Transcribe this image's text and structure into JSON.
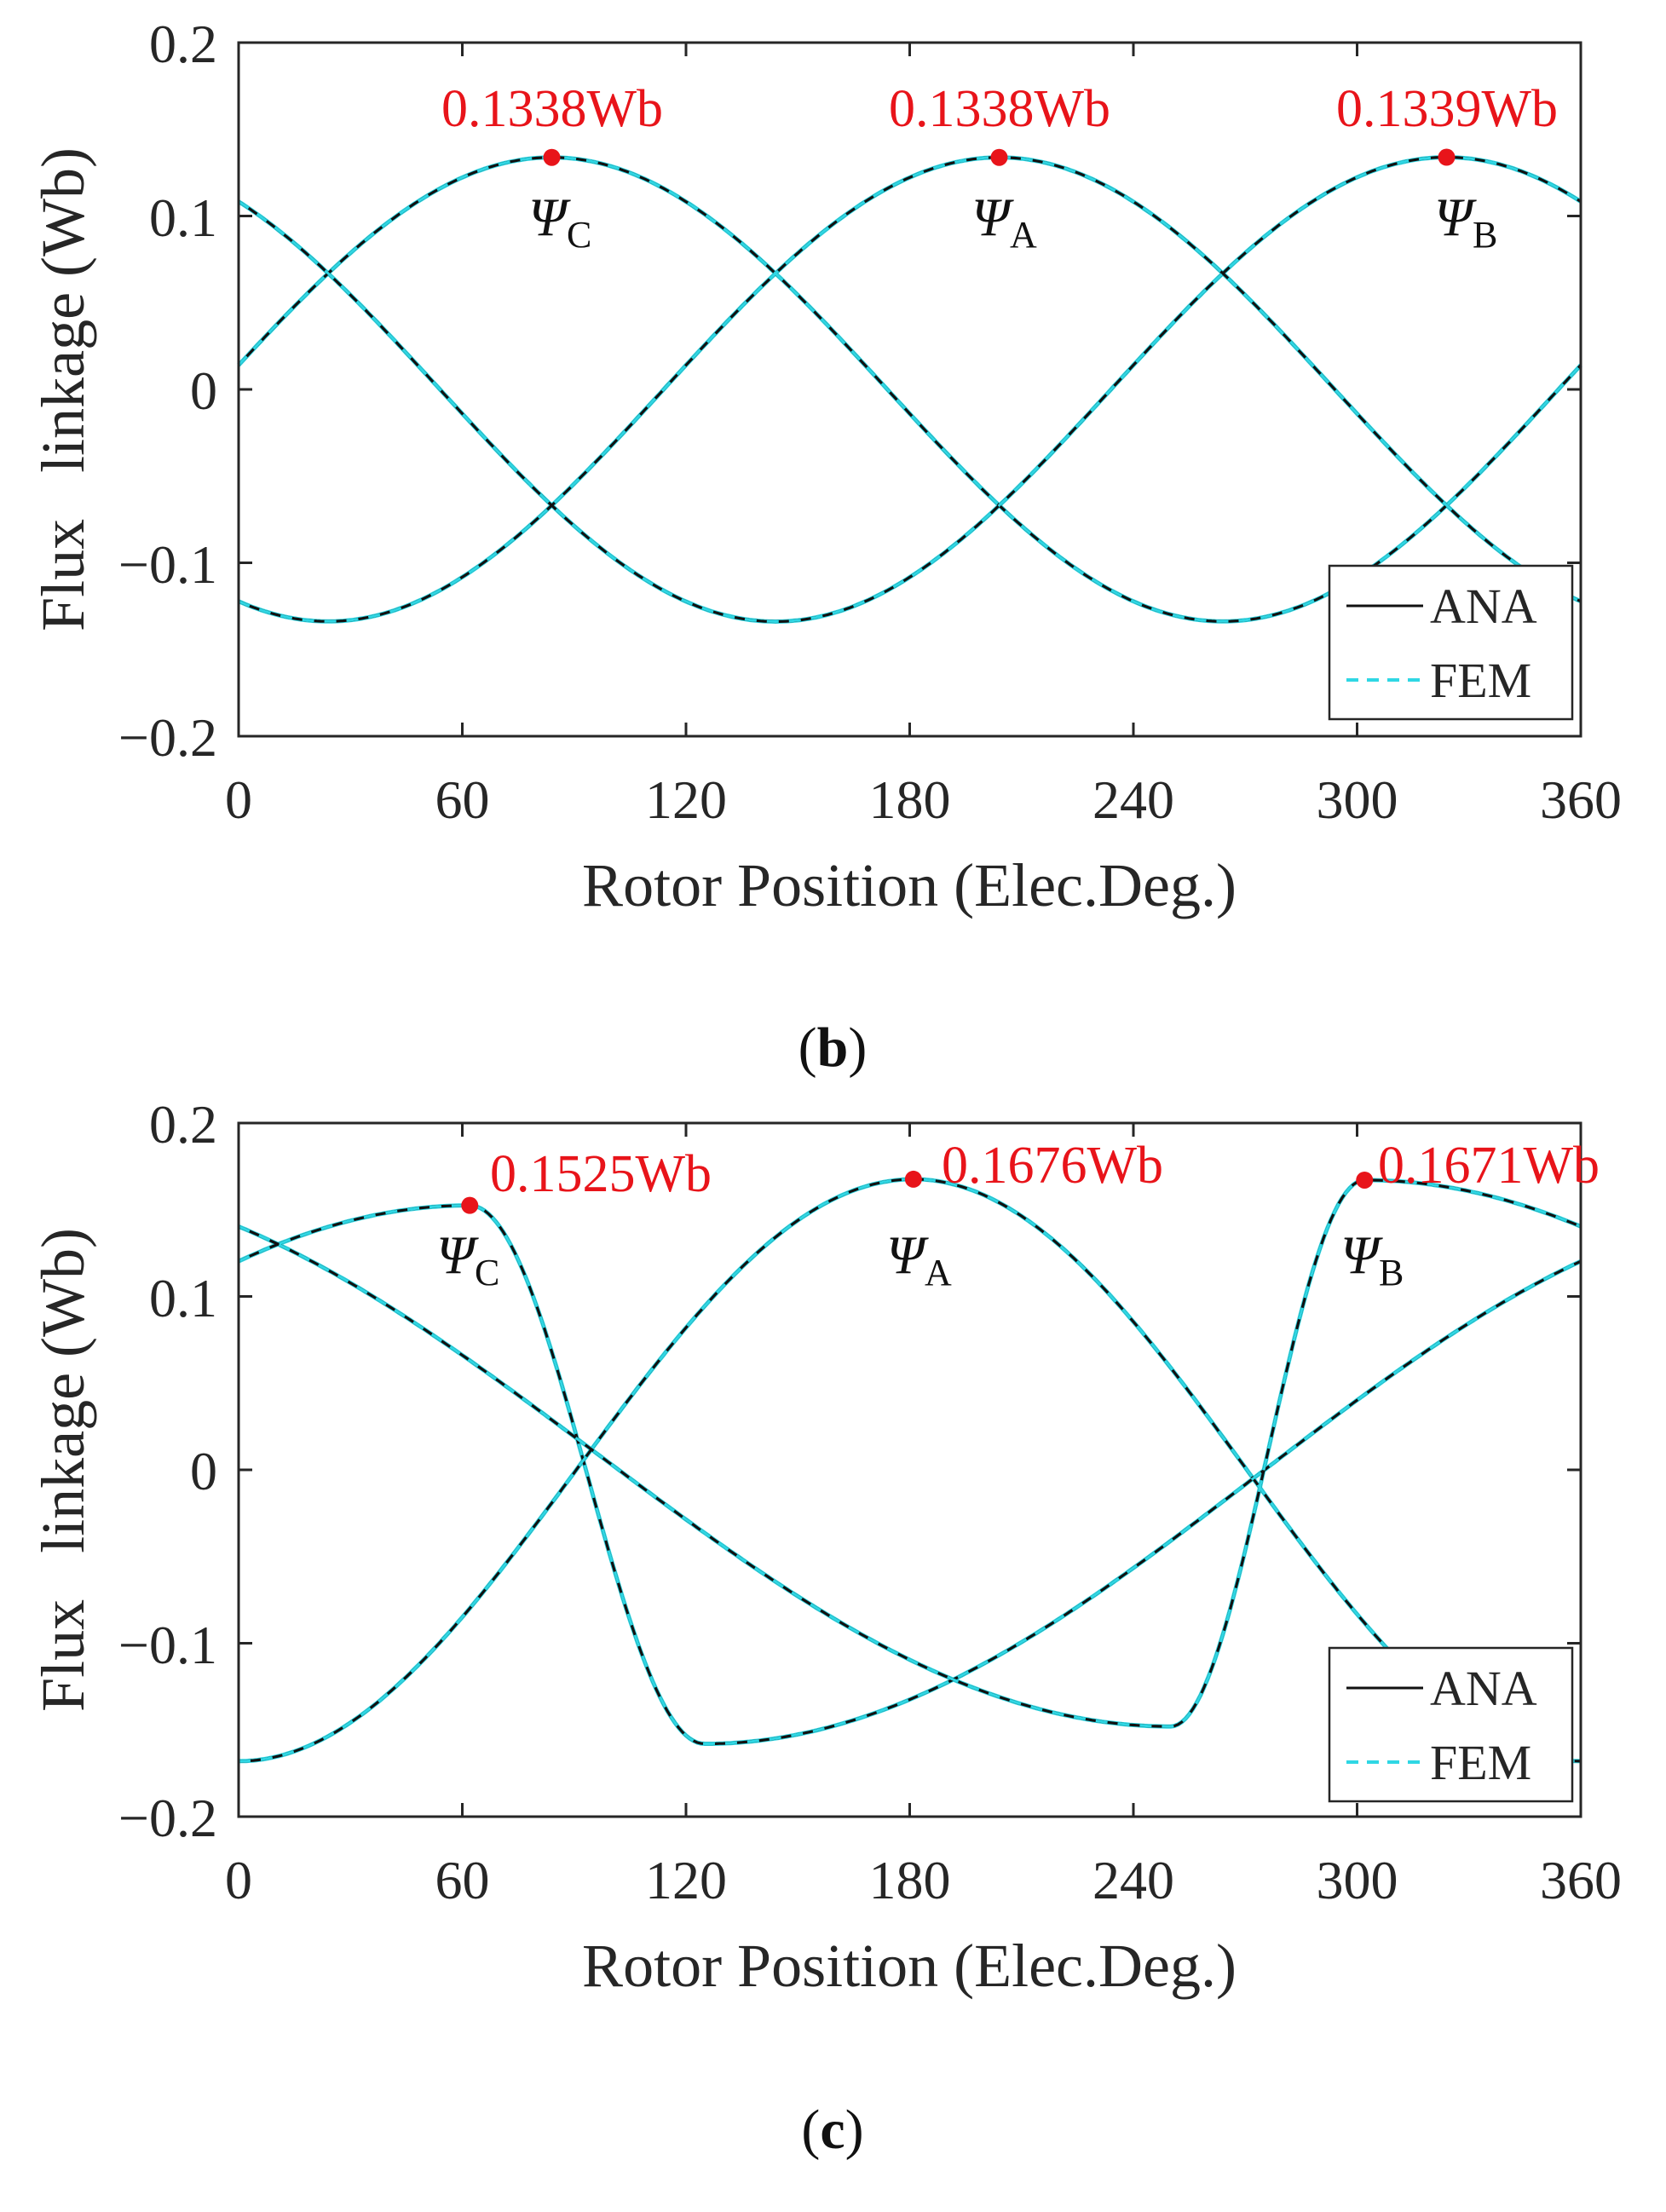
{
  "colors": {
    "ana": "#111111",
    "fem": "#2fd7e4",
    "marker": "#e8141a",
    "axis": "#262626"
  },
  "chart_data": [
    {
      "type": "line",
      "panel": "b",
      "caption": "b",
      "xlabel": "Rotor Position (Elec.Deg.)",
      "ylabel": "Flux   linkage (Wb)",
      "xlim": [
        0,
        360
      ],
      "ylim": [
        -0.2,
        0.2
      ],
      "xticks": [
        "0",
        "60",
        "120",
        "180",
        "240",
        "300",
        "360"
      ],
      "yticks": [
        "0.2",
        "0.1",
        "0",
        "−0.1",
        "−0.2"
      ],
      "legend": {
        "position": "bottom-right",
        "entries": [
          "ANA",
          "FEM"
        ]
      },
      "series": [
        {
          "name": "ANA",
          "style": "solid",
          "phases": [
            {
              "phase": "A",
              "amp": 0.1338,
              "peak_deg": 204
            },
            {
              "phase": "B",
              "amp": 0.1339,
              "peak_deg": 324
            },
            {
              "phase": "C",
              "amp": 0.1338,
              "peak_deg": 84
            }
          ]
        },
        {
          "name": "FEM",
          "style": "dashed",
          "phases": [
            {
              "phase": "A",
              "amp": 0.1338,
              "peak_deg": 204
            },
            {
              "phase": "B",
              "amp": 0.1339,
              "peak_deg": 324
            },
            {
              "phase": "C",
              "amp": 0.1338,
              "peak_deg": 84
            }
          ]
        }
      ],
      "annotations": [
        {
          "x": 84,
          "y": 0.1338,
          "text": "0.1338Wb",
          "psi": "Ψ",
          "sub": "C"
        },
        {
          "x": 204,
          "y": 0.1338,
          "text": "0.1338Wb",
          "psi": "Ψ",
          "sub": "A"
        },
        {
          "x": 324,
          "y": 0.1339,
          "text": "0.1339Wb",
          "psi": "Ψ",
          "sub": "B"
        }
      ]
    },
    {
      "type": "line",
      "panel": "c",
      "caption": "c",
      "xlabel": "Rotor Position (Elec.Deg.)",
      "ylabel": "Flux   linkage (Wb)",
      "xlim": [
        0,
        360
      ],
      "ylim": [
        -0.2,
        0.2
      ],
      "xticks": [
        "0",
        "60",
        "120",
        "180",
        "240",
        "300",
        "360"
      ],
      "yticks": [
        "0.2",
        "0.1",
        "0",
        "−0.1",
        "−0.2"
      ],
      "legend": {
        "position": "bottom-right",
        "entries": [
          "ANA",
          "FEM"
        ]
      },
      "series": [
        {
          "name": "ANA",
          "style": "solid",
          "phases": [
            {
              "phase": "A",
              "max": 0.1676,
              "peak_deg": 181,
              "min": -0.168,
              "trough_deg": 0
            },
            {
              "phase": "B",
              "max": 0.1671,
              "peak_deg": 302,
              "min": -0.148,
              "trough_deg": 250
            },
            {
              "phase": "C",
              "max": 0.1525,
              "peak_deg": 62,
              "min": -0.158,
              "trough_deg": 125
            }
          ]
        },
        {
          "name": "FEM",
          "style": "dashed",
          "phases": [
            {
              "phase": "A",
              "max": 0.1676,
              "peak_deg": 181,
              "min": -0.168,
              "trough_deg": 0
            },
            {
              "phase": "B",
              "max": 0.1671,
              "peak_deg": 302,
              "min": -0.148,
              "trough_deg": 250
            },
            {
              "phase": "C",
              "max": 0.1525,
              "peak_deg": 62,
              "min": -0.158,
              "trough_deg": 125
            }
          ]
        }
      ],
      "annotations": [
        {
          "x": 62,
          "y": 0.1525,
          "text": "0.1525Wb",
          "psi": "Ψ",
          "sub": "C"
        },
        {
          "x": 181,
          "y": 0.1676,
          "text": "0.1676Wb",
          "psi": "Ψ",
          "sub": "A"
        },
        {
          "x": 302,
          "y": 0.1671,
          "text": "0.1671Wb",
          "psi": "Ψ",
          "sub": "B"
        }
      ]
    }
  ]
}
